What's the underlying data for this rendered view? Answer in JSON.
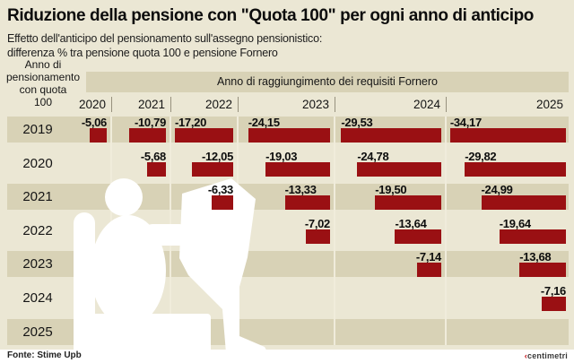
{
  "title": "Riduzione della pensione con \"Quota 100\" per ogni anno di anticipo",
  "subtitle_line1": "Effetto dell'anticipo del pensionamento sull'assegno pensionistico:",
  "subtitle_line2": "differenza % tra pensione quota 100 e pensione Fornero",
  "row_axis_label": "Anno di\npensionamento\ncon quota\n100",
  "source": "Fonte: Stime Upb",
  "logo": {
    "mark": "‹",
    "text": "centimetri"
  },
  "colors": {
    "background": "#ebe7d4",
    "row_stripe": "#d8d2b6",
    "header_band": "#d8d2b6",
    "bar": "#9a1013",
    "text": "#111111",
    "footer_background": "#ffffff",
    "silhouette": "#ffffff"
  },
  "chart_data": {
    "type": "bar",
    "title": "Riduzione della pensione con \"Quota 100\" per ogni anno di anticipo",
    "subtitle": "Effetto dell'anticipo del pensionamento sull'assegno pensionistico: differenza % tra pensione quota 100 e pensione Fornero",
    "row_axis_label": "Anno di pensionamento con quota 100",
    "col_axis_label": "Anno di raggiungimento dei requisiti Fornero",
    "unit": "%",
    "columns": [
      "2020",
      "2021",
      "2022",
      "2023",
      "2024",
      "2025"
    ],
    "rows": [
      "2019",
      "2020",
      "2021",
      "2022",
      "2023",
      "2024",
      "2025"
    ],
    "values": [
      [
        -5.06,
        -10.79,
        -17.2,
        -24.15,
        -29.53,
        -34.17
      ],
      [
        null,
        -5.68,
        -12.05,
        -19.03,
        -24.78,
        -29.82
      ],
      [
        null,
        null,
        -6.33,
        -13.33,
        -19.5,
        -24.99
      ],
      [
        null,
        null,
        null,
        -7.02,
        -13.64,
        -19.64
      ],
      [
        null,
        null,
        null,
        null,
        -7.14,
        -13.68
      ],
      [
        null,
        null,
        null,
        null,
        null,
        -7.16
      ],
      [
        null,
        null,
        null,
        null,
        null,
        null
      ]
    ],
    "value_labels": [
      [
        "-5,06",
        "-10,79",
        "-17,20",
        "-24,15",
        "-29,53",
        "-34,17"
      ],
      [
        null,
        "-5,68",
        "-12,05",
        "-19,03",
        "-24,78",
        "-29,82"
      ],
      [
        null,
        null,
        "-6,33",
        "-13,33",
        "-19,50",
        "-24,99"
      ],
      [
        null,
        null,
        null,
        "-7,02",
        "-13,64",
        "-19,64"
      ],
      [
        null,
        null,
        null,
        null,
        "-7,14",
        "-13,68"
      ],
      [
        null,
        null,
        null,
        null,
        null,
        "-7,16"
      ],
      [
        null,
        null,
        null,
        null,
        null,
        null
      ]
    ],
    "legend": "none",
    "grid": "row-stripes"
  }
}
